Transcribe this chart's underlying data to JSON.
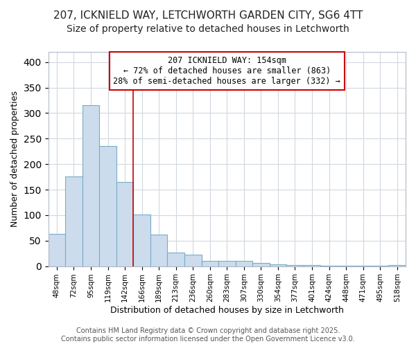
{
  "title1": "207, ICKNIELD WAY, LETCHWORTH GARDEN CITY, SG6 4TT",
  "title2": "Size of property relative to detached houses in Letchworth",
  "xlabel": "Distribution of detached houses by size in Letchworth",
  "ylabel": "Number of detached properties",
  "categories": [
    "48sqm",
    "72sqm",
    "95sqm",
    "119sqm",
    "142sqm",
    "166sqm",
    "189sqm",
    "213sqm",
    "236sqm",
    "260sqm",
    "283sqm",
    "307sqm",
    "330sqm",
    "354sqm",
    "377sqm",
    "401sqm",
    "424sqm",
    "448sqm",
    "471sqm",
    "495sqm",
    "518sqm"
  ],
  "values": [
    63,
    176,
    316,
    235,
    165,
    101,
    62,
    26,
    23,
    10,
    10,
    10,
    6,
    4,
    2,
    2,
    1,
    1,
    1,
    1,
    2
  ],
  "bar_color": "#ccdcec",
  "bar_edge_color": "#7aaac8",
  "annotation_text_line1": "207 ICKNIELD WAY: 154sqm",
  "annotation_text_line2": "← 72% of detached houses are smaller (863)",
  "annotation_text_line3": "28% of semi-detached houses are larger (332) →",
  "annotation_box_color": "#ffffff",
  "annotation_box_edge_color": "#cc0000",
  "vline_color": "#cc0000",
  "vline_x_index": 4.5,
  "footer_line1": "Contains HM Land Registry data © Crown copyright and database right 2025.",
  "footer_line2": "Contains public sector information licensed under the Open Government Licence v3.0.",
  "ylim": [
    0,
    420
  ],
  "background_color": "#ffffff",
  "plot_background_color": "#ffffff",
  "grid_color": "#d0d8e0",
  "title1_fontsize": 11,
  "title2_fontsize": 10,
  "xlabel_fontsize": 9,
  "ylabel_fontsize": 9,
  "tick_fontsize": 7.5,
  "footer_fontsize": 7,
  "annotation_fontsize": 8.5
}
